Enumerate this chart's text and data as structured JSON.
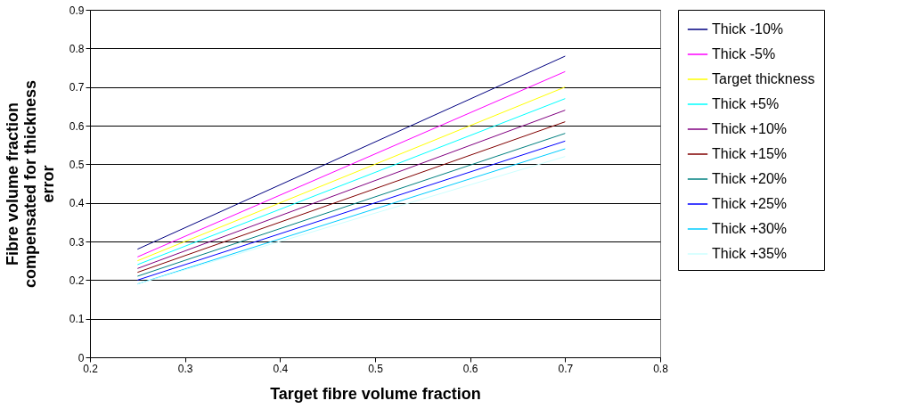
{
  "chart_data": {
    "type": "line",
    "xlabel": "Target fibre volume fraction",
    "ylabel": "Fibre volume fraction compensated for thickness error",
    "x": [
      0.25,
      0.7
    ],
    "series": [
      {
        "name": "Thick -10%",
        "color": "#000080",
        "values": [
          0.28,
          0.78
        ]
      },
      {
        "name": "Thick -5%",
        "color": "#ff00ff",
        "values": [
          0.26,
          0.74
        ]
      },
      {
        "name": "Target thickness",
        "color": "#ffff00",
        "values": [
          0.25,
          0.7
        ]
      },
      {
        "name": "Thick +5%",
        "color": "#00ffff",
        "values": [
          0.24,
          0.67
        ]
      },
      {
        "name": "Thick +10%",
        "color": "#800080",
        "values": [
          0.23,
          0.64
        ]
      },
      {
        "name": "Thick +15%",
        "color": "#800000",
        "values": [
          0.22,
          0.61
        ]
      },
      {
        "name": "Thick +20%",
        "color": "#008080",
        "values": [
          0.21,
          0.58
        ]
      },
      {
        "name": "Thick +25%",
        "color": "#0000ff",
        "values": [
          0.2,
          0.56
        ]
      },
      {
        "name": "Thick +30%",
        "color": "#00ccff",
        "values": [
          0.19,
          0.54
        ]
      },
      {
        "name": "Thick +35%",
        "color": "#ccffff",
        "values": [
          0.19,
          0.52
        ]
      }
    ],
    "xlim": [
      0.2,
      0.8
    ],
    "xticks": [
      0.2,
      0.3,
      0.4,
      0.5,
      0.6,
      0.7,
      0.8
    ],
    "ylim": [
      0,
      0.9
    ],
    "yticks": [
      0,
      0.1,
      0.2,
      0.3,
      0.4,
      0.5,
      0.6,
      0.7,
      0.8,
      0.9
    ],
    "grid": "y",
    "legend": "right",
    "marker": "none",
    "line_style": "solid"
  }
}
